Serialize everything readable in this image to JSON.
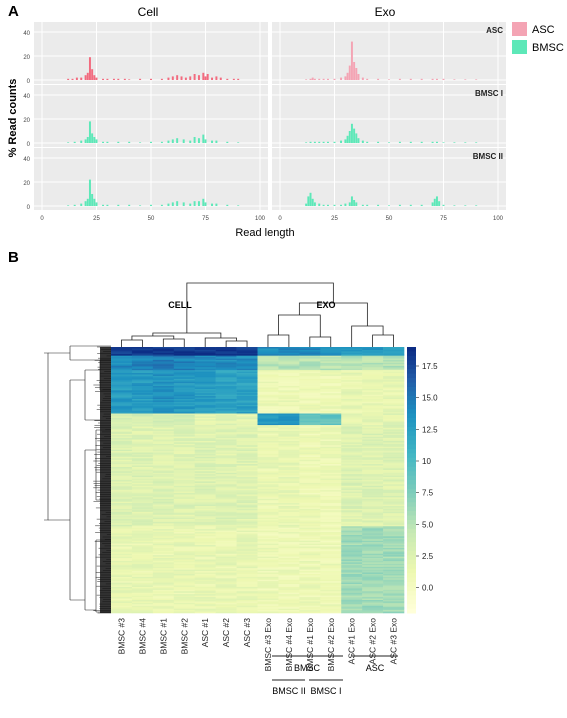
{
  "panel_a": {
    "label": "A",
    "facet_cols": [
      "Cell",
      "Exo"
    ],
    "facet_rows": [
      "ASC",
      "BMSC I",
      "BMSC II"
    ],
    "legend": [
      {
        "label": "ASC",
        "color": "#f4a4b4"
      },
      {
        "label": "BMSC",
        "color": "#5de8b8"
      }
    ],
    "ylabel": "% Read counts",
    "xlabel": "Read length",
    "x_ticks": [
      "0",
      "25",
      "50",
      "75",
      "100"
    ],
    "y_ticks": [
      "0",
      "20",
      "40"
    ]
  },
  "panel_b": {
    "label": "B",
    "group_labels": [
      "CELL",
      "EXO"
    ],
    "colorbar_ticks": [
      "17.5",
      "15.0",
      "12.5",
      "10",
      "7.5",
      "5.0",
      "2.5",
      "0.0"
    ],
    "columns": [
      "BMSC #3",
      "BMSC #4",
      "BMSC #1",
      "BMSC #2",
      "ASC #1",
      "ASC #2",
      "ASC #3",
      "BMSC #3 Exo",
      "BMSC #4 Exo",
      "BMSC #1 Exo",
      "BMSC #2 Exo",
      "ASC #1 Exo",
      "ASC #2 Exo",
      "ASC #3 Exo"
    ],
    "bracket_bmsc": "BMSC",
    "bracket_asc": "ASC",
    "bracket_bmsc2": "BMSC II",
    "bracket_bmsc1": "BMSC I"
  },
  "chart_data": [
    {
      "type": "bar",
      "title": "",
      "xlabel": "Read length",
      "ylabel": "% Read counts",
      "xlim": [
        0,
        100
      ],
      "ylim": [
        0,
        45
      ],
      "panels": [
        {
          "row": "ASC",
          "col": "Cell",
          "color": "#f26b7f",
          "x": [
            12,
            14,
            16,
            18,
            20,
            21,
            22,
            23,
            24,
            25,
            28,
            30,
            33,
            35,
            38,
            40,
            45,
            50,
            55,
            58,
            60,
            62,
            64,
            66,
            68,
            70,
            72,
            74,
            75,
            76,
            78,
            80,
            82,
            85,
            88,
            90
          ],
          "y": [
            1,
            1,
            2,
            2,
            4,
            6,
            19,
            9,
            4,
            2,
            1,
            1,
            1,
            1,
            1,
            0.5,
            1,
            1,
            1,
            2,
            3,
            4,
            3,
            2,
            3,
            5,
            4,
            6,
            3,
            5,
            2,
            3,
            2,
            1,
            1,
            1
          ]
        },
        {
          "row": "ASC",
          "col": "Exo",
          "color": "#f4a4b4",
          "x": [
            12,
            14,
            15,
            16,
            18,
            20,
            22,
            25,
            28,
            30,
            31,
            32,
            33,
            34,
            35,
            36,
            38,
            40,
            45,
            50,
            55,
            60,
            65,
            70,
            72,
            75,
            80,
            85,
            90
          ],
          "y": [
            0.5,
            1,
            2,
            1,
            1,
            1,
            1,
            1,
            2,
            3,
            6,
            12,
            32,
            15,
            10,
            5,
            2,
            1,
            1,
            0.5,
            1,
            1,
            1,
            1,
            1,
            1,
            0.5,
            0.5,
            0.5
          ]
        },
        {
          "row": "BMSC I",
          "col": "Cell",
          "color": "#5de8b8",
          "x": [
            12,
            15,
            18,
            20,
            21,
            22,
            23,
            24,
            25,
            28,
            30,
            35,
            40,
            45,
            50,
            55,
            58,
            60,
            62,
            65,
            68,
            70,
            72,
            74,
            75,
            78,
            80,
            85,
            90
          ],
          "y": [
            0.5,
            1,
            2,
            3,
            5,
            18,
            8,
            5,
            3,
            1,
            1,
            1,
            1,
            0.5,
            1,
            1,
            2,
            3,
            4,
            3,
            2,
            5,
            4,
            7,
            3,
            2,
            2,
            1,
            0.5
          ]
        },
        {
          "row": "BMSC I",
          "col": "Exo",
          "color": "#5de8b8",
          "x": [
            12,
            14,
            16,
            18,
            20,
            22,
            25,
            28,
            30,
            31,
            32,
            33,
            34,
            35,
            36,
            38,
            40,
            45,
            50,
            55,
            60,
            65,
            70,
            72,
            75,
            80,
            85,
            90
          ],
          "y": [
            0.5,
            1,
            1,
            1,
            1,
            1,
            1,
            2,
            3,
            6,
            10,
            16,
            12,
            8,
            4,
            2,
            1,
            1,
            0.5,
            1,
            1,
            1,
            1,
            1,
            0.5,
            0.5,
            0.5,
            0.5
          ]
        },
        {
          "row": "BMSC II",
          "col": "Cell",
          "color": "#5de8b8",
          "x": [
            12,
            15,
            18,
            20,
            21,
            22,
            23,
            24,
            25,
            28,
            30,
            35,
            40,
            45,
            50,
            55,
            58,
            60,
            62,
            65,
            68,
            70,
            72,
            74,
            75,
            78,
            80,
            85,
            90
          ],
          "y": [
            0.5,
            1,
            2,
            4,
            6,
            22,
            10,
            6,
            3,
            1,
            1,
            1,
            1,
            0.5,
            1,
            1,
            2,
            3,
            4,
            3,
            2,
            4,
            4,
            6,
            3,
            2,
            2,
            1,
            0.5
          ]
        },
        {
          "row": "BMSC II",
          "col": "Exo",
          "color": "#5de8b8",
          "x": [
            12,
            13,
            14,
            15,
            16,
            18,
            20,
            22,
            25,
            28,
            30,
            32,
            33,
            34,
            35,
            38,
            40,
            45,
            50,
            55,
            60,
            65,
            70,
            71,
            72,
            73,
            75,
            80,
            85,
            90
          ],
          "y": [
            2,
            8,
            11,
            6,
            3,
            2,
            1,
            1,
            1,
            1,
            2,
            3,
            8,
            5,
            3,
            1,
            1,
            1,
            0.5,
            1,
            1,
            1,
            3,
            6,
            8,
            4,
            1,
            0.5,
            0.5,
            0.5
          ]
        }
      ]
    },
    {
      "type": "heatmap",
      "title": "",
      "columns": [
        "BMSC #3",
        "BMSC #4",
        "BMSC #1",
        "BMSC #2",
        "ASC #1",
        "ASC #2",
        "ASC #3",
        "BMSC #3 Exo",
        "BMSC #4 Exo",
        "BMSC #1 Exo",
        "BMSC #2 Exo",
        "ASC #1 Exo",
        "ASC #2 Exo",
        "ASC #3 Exo"
      ],
      "colorbar_range": [
        -2,
        19
      ],
      "colormap": "YlGnBu",
      "row_groups": [
        {
          "rows": 6,
          "values": [
            18.5,
            18.5,
            18.5,
            18.5,
            18.5,
            18.5,
            18.5,
            14,
            14,
            14,
            14,
            13,
            13,
            13
          ]
        },
        {
          "rows": 10,
          "values": [
            14,
            14.5,
            15,
            14.5,
            14,
            14,
            14,
            5,
            5,
            5,
            5,
            5,
            5,
            5
          ]
        },
        {
          "rows": 30,
          "values": [
            13,
            13,
            13.5,
            13,
            13,
            12.5,
            12.5,
            1,
            1,
            1,
            1,
            1.5,
            1.5,
            1.5
          ]
        },
        {
          "rows": 8,
          "values": [
            3,
            3,
            3,
            3,
            2,
            2,
            2,
            13,
            13,
            9,
            9,
            2,
            2,
            2
          ]
        },
        {
          "rows": 70,
          "values": [
            2.5,
            2.5,
            2.5,
            2.5,
            2.5,
            2.5,
            2.5,
            1.5,
            1.5,
            1,
            1,
            2.5,
            2.5,
            2.5
          ]
        },
        {
          "rows": 60,
          "values": [
            1.5,
            1.5,
            1.5,
            1.5,
            1.5,
            1.5,
            1.5,
            1,
            1,
            1,
            1,
            6,
            6,
            6
          ]
        }
      ]
    }
  ]
}
